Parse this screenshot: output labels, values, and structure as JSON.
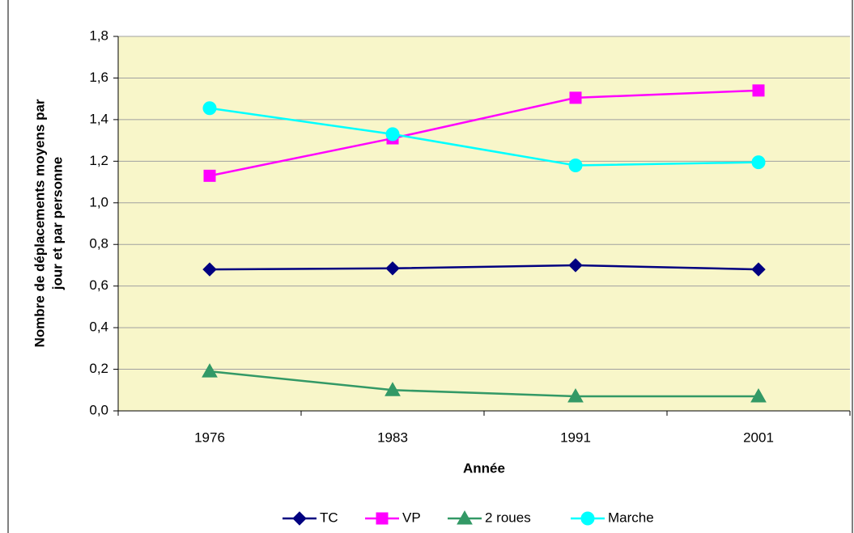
{
  "chart_data": {
    "type": "line",
    "xlabel": "Année",
    "ylabel": [
      "Nombre de déplacements moyens par",
      "jour et par personne"
    ],
    "categories": [
      "1976",
      "1983",
      "1991",
      "2001"
    ],
    "series": [
      {
        "name": "TC",
        "color": "#000080",
        "marker": "diamond",
        "values": [
          0.68,
          0.685,
          0.7,
          0.68
        ]
      },
      {
        "name": "VP",
        "color": "#ff00ff",
        "marker": "square",
        "values": [
          1.13,
          1.31,
          1.505,
          1.54
        ]
      },
      {
        "name": "2 roues",
        "color": "#339966",
        "marker": "triangle",
        "values": [
          0.19,
          0.1,
          0.07,
          0.07
        ]
      },
      {
        "name": "Marche",
        "color": "#00ffff",
        "marker": "circle",
        "values": [
          1.455,
          1.33,
          1.18,
          1.195
        ]
      }
    ],
    "ylim": [
      0,
      1.8
    ],
    "yticks": [
      {
        "value": 0,
        "label": "0,0"
      },
      {
        "value": 0.2,
        "label": "0,2"
      },
      {
        "value": 0.4,
        "label": "0,4"
      },
      {
        "value": 0.6,
        "label": "0,6"
      },
      {
        "value": 0.8,
        "label": "0,8"
      },
      {
        "value": 1.0,
        "label": "1,0"
      },
      {
        "value": 1.2,
        "label": "1,2"
      },
      {
        "value": 1.4,
        "label": "1,4"
      },
      {
        "value": 1.6,
        "label": "1,6"
      },
      {
        "value": 1.8,
        "label": "1,8"
      }
    ],
    "grid": true,
    "legend": "bottom"
  }
}
